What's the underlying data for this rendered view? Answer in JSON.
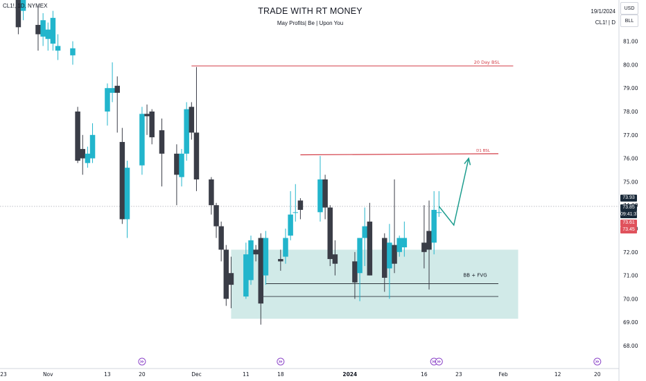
{
  "header": {
    "symbol": "CL1!, 1D, NYMEX",
    "title": "TRADE WITH RT MONEY",
    "subtitle": "May Profits| Be |  Upon You",
    "date": "19/1/2024",
    "symbol_short": "CL1! | D",
    "currency_tag": "USD",
    "bll_tag": "BLL"
  },
  "price_labels": {
    "last": "73.93",
    "last2": "73.85",
    "countdown": "09:41:37",
    "bid": "73.61",
    "ask": "73.45"
  },
  "colors": {
    "bull": "#22b5cc",
    "bear": "#3a3d47",
    "zone": "#c9e6e4",
    "bsl_line": "#d23a44",
    "arrow": "#1d9d8e",
    "last_price_bg": "#1a2a3a",
    "bid_bg": "#e0525c",
    "event_icon": "#8d47c9"
  },
  "chart_data": {
    "type": "candlestick",
    "title": "TRADE WITH RT MONEY",
    "y_ticks": [
      68,
      69,
      70,
      71,
      72,
      73,
      74,
      75,
      76,
      77,
      78,
      79,
      80,
      81
    ],
    "y_tick_labels": [
      "68.00",
      "69.00",
      "70.00",
      "71.00",
      "72.00",
      "73.00",
      "74.00",
      "75.00",
      "76.00",
      "77.00",
      "78.00",
      "79.00",
      "80.00",
      "81.00"
    ],
    "x_tick_labels": [
      "23",
      "Nov",
      "13",
      "20",
      "Dec",
      "11",
      "18",
      "2024",
      "16",
      "23",
      "Feb",
      "12",
      "20"
    ],
    "x_tick_dates": [
      "2023-10-23",
      "2023-11-01",
      "2023-11-13",
      "2023-11-20",
      "2023-12-01",
      "2023-12-11",
      "2023-12-18",
      "2024-01-01",
      "2024-01-16",
      "2024-01-23",
      "2024-02-01",
      "2024-02-12",
      "2024-02-20"
    ],
    "dates": [
      "2023-10-26",
      "2023-10-27",
      "2023-10-30",
      "2023-10-31",
      "2023-11-01",
      "2023-11-02",
      "2023-11-03",
      "2023-11-06",
      "2023-11-07",
      "2023-11-08",
      "2023-11-09",
      "2023-11-10",
      "2023-11-13",
      "2023-11-14",
      "2023-11-15",
      "2023-11-16",
      "2023-11-17",
      "2023-11-20",
      "2023-11-21",
      "2023-11-22",
      "2023-11-24",
      "2023-11-27",
      "2023-11-28",
      "2023-11-29",
      "2023-11-30",
      "2023-12-01",
      "2023-12-04",
      "2023-12-05",
      "2023-12-06",
      "2023-12-07",
      "2023-12-08",
      "2023-12-11",
      "2023-12-12",
      "2023-12-13",
      "2023-12-14",
      "2023-12-15",
      "2023-12-18",
      "2023-12-19",
      "2023-12-20",
      "2023-12-21",
      "2023-12-22",
      "2023-12-26",
      "2023-12-27",
      "2023-12-28",
      "2023-12-29",
      "2024-01-02",
      "2024-01-03",
      "2024-01-04",
      "2024-01-05",
      "2024-01-08",
      "2024-01-09",
      "2024-01-10",
      "2024-01-11",
      "2024-01-12",
      "2024-01-16",
      "2024-01-17",
      "2024-01-18",
      "2024-01-19"
    ],
    "open": [
      83.2,
      82.3,
      81.7,
      81.2,
      81.1,
      80.9,
      80.6,
      80.4,
      78.0,
      76.4,
      75.8,
      76.0,
      78.0,
      78.8,
      79.1,
      76.7,
      73.4,
      75.7,
      77.9,
      78.0,
      77.2,
      76.2,
      75.2,
      76.2,
      78.2,
      77.1,
      75.1,
      74.0,
      73.1,
      72.1,
      71.1,
      70.1,
      70.8,
      72.1,
      72.6,
      71.0,
      71.7,
      71.8,
      72.7,
      73.7,
      74.2,
      73.7,
      75.1,
      73.9,
      71.9,
      71.6,
      71.1,
      72.6,
      73.3,
      72.6,
      71.3,
      72.3,
      72.0,
      72.2,
      72.4,
      72.9,
      72.4,
      73.7
    ],
    "close": [
      81.6,
      83.0,
      81.3,
      81.9,
      81.5,
      82.0,
      80.8,
      80.7,
      75.9,
      76.0,
      76.2,
      77.0,
      79.0,
      79.0,
      78.8,
      73.4,
      75.6,
      77.9,
      77.8,
      76.9,
      76.2,
      75.3,
      76.2,
      78.1,
      77.1,
      75.1,
      74.0,
      73.1,
      72.1,
      70.0,
      70.6,
      71.9,
      72.5,
      71.9,
      69.8,
      72.6,
      71.6,
      72.6,
      73.6,
      73.7,
      73.8,
      75.1,
      73.9,
      71.7,
      71.5,
      70.7,
      72.6,
      73.1,
      71.0,
      70.9,
      72.4,
      71.5,
      72.6,
      72.6,
      72.0,
      72.1,
      73.8,
      73.7
    ],
    "high": [
      84.0,
      83.3,
      82.5,
      82.2,
      81.8,
      82.3,
      81.3,
      81.0,
      78.2,
      77.0,
      76.5,
      77.5,
      79.2,
      80.1,
      79.5,
      77.3,
      75.9,
      78.2,
      78.3,
      78.1,
      77.7,
      76.6,
      76.4,
      78.4,
      78.4,
      79.9,
      75.2,
      74.1,
      73.3,
      72.3,
      71.8,
      72.4,
      72.7,
      72.3,
      72.8,
      72.9,
      72.1,
      73.0,
      74.6,
      74.9,
      74.3,
      76.1,
      75.3,
      74.0,
      72.5,
      72.0,
      72.6,
      73.9,
      74.1,
      72.8,
      73.2,
      75.1,
      72.7,
      73.3,
      74.0,
      74.2,
      74.6,
      74.6
    ],
    "low": [
      81.3,
      81.9,
      80.6,
      80.8,
      80.6,
      80.6,
      80.2,
      80.0,
      75.8,
      75.3,
      75.6,
      75.8,
      77.4,
      78.4,
      77.1,
      73.2,
      72.6,
      75.3,
      77.0,
      76.6,
      74.8,
      74.0,
      74.8,
      75.9,
      76.8,
      74.6,
      73.6,
      72.6,
      71.6,
      69.7,
      69.6,
      70.0,
      70.6,
      71.6,
      68.9,
      70.6,
      71.2,
      71.5,
      72.5,
      73.3,
      73.4,
      73.3,
      73.4,
      71.4,
      71.0,
      70.0,
      69.9,
      71.4,
      71.0,
      70.3,
      70.0,
      71.1,
      71.8,
      71.8,
      71.3,
      70.4,
      71.9,
      73.5
    ]
  },
  "annotations": {
    "day20_bsl": {
      "label": "20 Day BSL",
      "price": 79.95,
      "from": "2023-11-30",
      "to": "2024-02-03"
    },
    "d1_bsl": {
      "label": "D1 BSL",
      "price_start": 76.15,
      "price_end": 76.2,
      "from": "2023-12-22",
      "to": "2024-01-31"
    },
    "zone": {
      "label": "BB + FVG",
      "top": 72.1,
      "bottom": 69.15,
      "from": "2023-12-08",
      "to": "2024-02-04"
    },
    "line_upper": {
      "price": 70.65,
      "from": "2023-12-15",
      "to": "2024-01-31"
    },
    "line_lower": {
      "price": 70.1,
      "from": "2023-12-14",
      "to": "2024-01-31"
    },
    "last_price_line": 73.95,
    "projection": [
      [
        "2024-01-19",
        73.95
      ],
      [
        "2024-01-22",
        73.15
      ],
      [
        "2024-01-25",
        76.0
      ]
    ]
  },
  "event_markers": [
    "2023-11-20",
    "2023-12-18",
    "2024-01-18",
    "2024-01-19",
    "2024-02-20"
  ]
}
